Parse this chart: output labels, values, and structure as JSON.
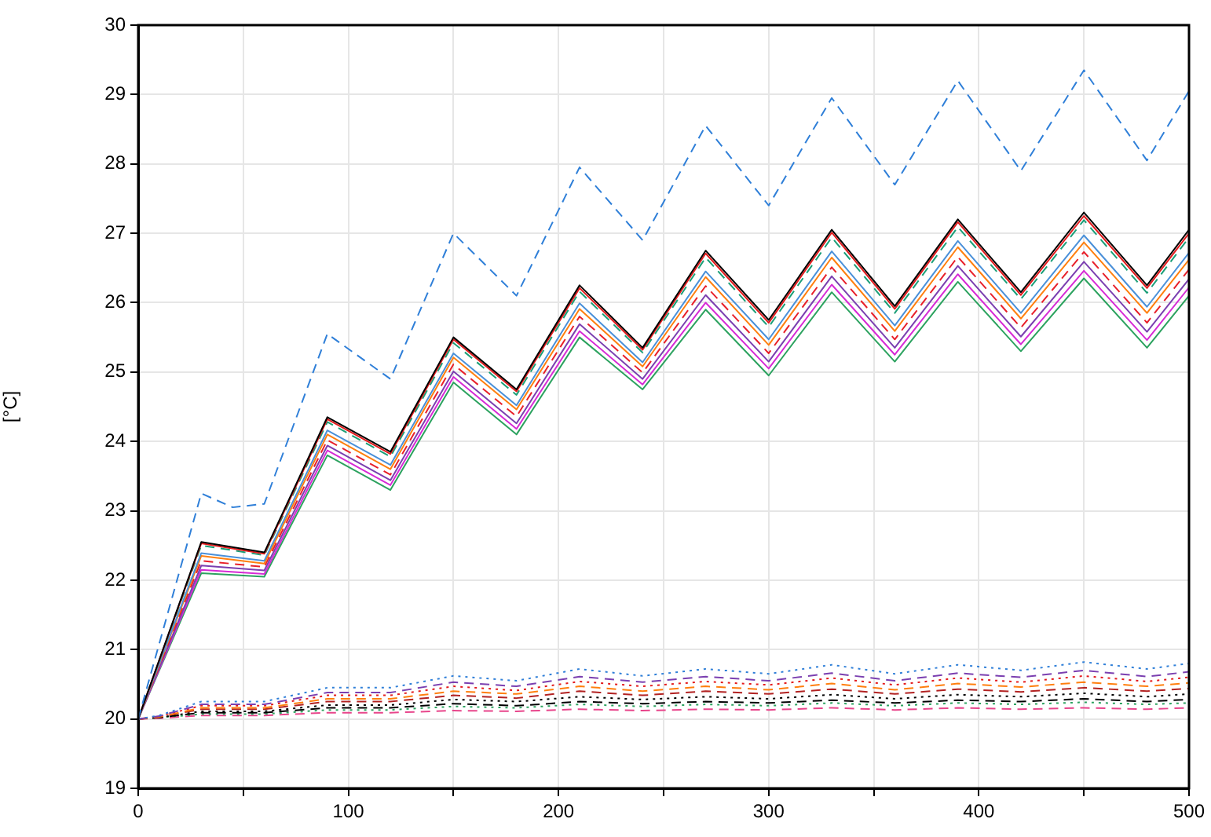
{
  "chart_data": {
    "type": "line",
    "ylabel": "[°C]",
    "xlim": [
      0,
      500
    ],
    "ylim": [
      19,
      30
    ],
    "xticks": [
      0,
      {
        "value": 50,
        "label": null
      },
      100,
      {
        "value": 150,
        "label": null
      },
      200,
      {
        "value": 250,
        "label": null
      },
      300,
      {
        "value": 350,
        "label": null
      },
      400,
      {
        "value": 450,
        "label": null
      },
      500
    ],
    "yticks": [
      19,
      20,
      21,
      22,
      23,
      24,
      25,
      26,
      27,
      28,
      29,
      30
    ],
    "grid": true,
    "legend": false,
    "series": [
      {
        "color": "#2f7fd8",
        "line_style": "dashed",
        "x": [
          0,
          30,
          45,
          60,
          90,
          120,
          150,
          180,
          210,
          240,
          270,
          300,
          330,
          360,
          390,
          420,
          450,
          480,
          500
        ],
        "values": [
          20,
          23.25,
          23.05,
          23.1,
          25.55,
          24.9,
          27.0,
          26.1,
          27.95,
          26.9,
          28.55,
          27.4,
          28.95,
          27.7,
          29.2,
          27.9,
          29.35,
          28.05,
          29.05
        ]
      },
      {
        "color": "#000000",
        "line_style": "solid",
        "x": [
          0,
          30,
          60,
          90,
          120,
          150,
          180,
          210,
          240,
          270,
          300,
          330,
          360,
          390,
          420,
          450,
          480,
          500
        ],
        "values": [
          20,
          22.55,
          22.4,
          24.35,
          23.85,
          25.5,
          24.75,
          26.25,
          25.35,
          26.75,
          25.75,
          27.05,
          25.95,
          27.2,
          26.15,
          27.3,
          26.25,
          27.05
        ]
      },
      {
        "color": "#e41a1c",
        "line_style": "solid",
        "x": [
          0,
          30,
          60,
          90,
          120,
          150,
          180,
          210,
          240,
          270,
          300,
          330,
          360,
          390,
          420,
          450,
          480,
          500
        ],
        "values": [
          20,
          22.53,
          22.38,
          24.32,
          23.82,
          25.47,
          24.72,
          26.21,
          25.32,
          26.71,
          25.71,
          27.01,
          25.91,
          27.16,
          26.11,
          27.25,
          26.21,
          27.0
        ]
      },
      {
        "color": "#1b9e77",
        "line_style": "dashed",
        "x": [
          0,
          30,
          60,
          90,
          120,
          150,
          180,
          210,
          240,
          270,
          300,
          330,
          360,
          390,
          420,
          450,
          480,
          500
        ],
        "values": [
          20,
          22.5,
          22.36,
          24.28,
          23.78,
          25.42,
          24.67,
          26.16,
          25.28,
          26.65,
          25.65,
          26.94,
          25.85,
          27.09,
          26.05,
          27.19,
          26.14,
          26.94
        ]
      },
      {
        "color": "#4a90d9",
        "line_style": "solid",
        "x": [
          0,
          30,
          60,
          90,
          120,
          150,
          180,
          210,
          240,
          270,
          300,
          330,
          360,
          390,
          420,
          450,
          480,
          500
        ],
        "values": [
          20,
          22.39,
          22.28,
          24.16,
          23.66,
          25.27,
          24.52,
          25.99,
          25.14,
          26.45,
          25.47,
          26.74,
          25.67,
          26.89,
          25.85,
          26.97,
          25.94,
          26.72
        ]
      },
      {
        "color": "#ff7f0e",
        "line_style": "solid",
        "x": [
          0,
          30,
          60,
          90,
          120,
          150,
          180,
          210,
          240,
          270,
          300,
          330,
          360,
          390,
          420,
          450,
          480,
          500
        ],
        "values": [
          20,
          22.35,
          22.24,
          24.1,
          23.6,
          25.21,
          24.46,
          25.91,
          25.08,
          26.37,
          25.39,
          26.65,
          25.59,
          26.8,
          25.77,
          26.87,
          25.85,
          26.62
        ]
      },
      {
        "color": "#e8202a",
        "line_style": "dashed",
        "x": [
          0,
          30,
          60,
          90,
          120,
          150,
          180,
          210,
          240,
          270,
          300,
          330,
          360,
          390,
          420,
          450,
          480,
          500
        ],
        "values": [
          20,
          22.28,
          22.19,
          24.02,
          23.52,
          25.11,
          24.36,
          25.8,
          24.99,
          26.24,
          25.27,
          26.51,
          25.47,
          26.66,
          25.64,
          26.73,
          25.71,
          26.48
        ]
      },
      {
        "color": "#7b3fb0",
        "line_style": "solid",
        "x": [
          0,
          30,
          60,
          90,
          120,
          150,
          180,
          210,
          240,
          270,
          300,
          330,
          360,
          390,
          420,
          450,
          480,
          500
        ],
        "values": [
          20,
          22.21,
          22.14,
          23.94,
          23.44,
          25.01,
          24.26,
          25.69,
          24.9,
          26.11,
          25.15,
          26.38,
          25.35,
          26.53,
          25.51,
          26.59,
          25.58,
          26.34
        ]
      },
      {
        "color": "#d62ad6",
        "line_style": "solid",
        "x": [
          0,
          30,
          60,
          90,
          120,
          150,
          180,
          210,
          240,
          270,
          300,
          330,
          360,
          390,
          420,
          450,
          480,
          500
        ],
        "values": [
          20,
          22.15,
          22.09,
          23.87,
          23.37,
          24.93,
          24.18,
          25.59,
          24.82,
          26.0,
          25.05,
          26.26,
          25.25,
          26.41,
          25.4,
          26.46,
          25.46,
          26.22
        ]
      },
      {
        "color": "#2ca25f",
        "line_style": "solid",
        "x": [
          0,
          30,
          60,
          90,
          120,
          150,
          180,
          210,
          240,
          270,
          300,
          330,
          360,
          390,
          420,
          450,
          480,
          500
        ],
        "values": [
          20,
          22.1,
          22.05,
          23.8,
          23.3,
          24.85,
          24.1,
          25.5,
          24.75,
          25.9,
          24.95,
          26.15,
          25.15,
          26.3,
          25.3,
          26.35,
          25.35,
          26.1
        ]
      },
      {
        "color": "#2f7fd8",
        "line_style": "dotted",
        "x": [
          0,
          10,
          30,
          60,
          90,
          120,
          150,
          180,
          210,
          240,
          270,
          300,
          330,
          360,
          390,
          420,
          450,
          480,
          500
        ],
        "values": [
          20,
          20.05,
          20.25,
          20.25,
          20.45,
          20.45,
          20.62,
          20.55,
          20.72,
          20.62,
          20.72,
          20.65,
          20.78,
          20.65,
          20.78,
          20.7,
          20.82,
          20.72,
          20.8
        ]
      },
      {
        "color": "#7b3fb0",
        "line_style": "dashed",
        "x": [
          0,
          10,
          30,
          60,
          90,
          120,
          150,
          180,
          210,
          240,
          270,
          300,
          330,
          360,
          390,
          420,
          450,
          480,
          500
        ],
        "values": [
          20,
          20.04,
          20.21,
          20.21,
          20.38,
          20.38,
          20.53,
          20.47,
          20.61,
          20.53,
          20.61,
          20.55,
          20.66,
          20.55,
          20.66,
          20.6,
          20.7,
          20.61,
          20.68
        ]
      },
      {
        "color": "#e41a1c",
        "line_style": "dotted",
        "x": [
          0,
          10,
          30,
          60,
          90,
          120,
          150,
          180,
          210,
          240,
          270,
          300,
          330,
          360,
          390,
          420,
          450,
          480,
          500
        ],
        "values": [
          20,
          20.04,
          20.19,
          20.19,
          20.34,
          20.34,
          20.47,
          20.41,
          20.54,
          20.47,
          20.54,
          20.49,
          20.59,
          20.49,
          20.59,
          20.53,
          20.62,
          20.54,
          20.6
        ]
      },
      {
        "color": "#ff7f0e",
        "line_style": "dashed",
        "x": [
          0,
          10,
          30,
          60,
          90,
          120,
          150,
          180,
          210,
          240,
          270,
          300,
          330,
          360,
          390,
          420,
          450,
          480,
          500
        ],
        "values": [
          20,
          20.03,
          20.16,
          20.16,
          20.29,
          20.29,
          20.4,
          20.36,
          20.47,
          20.4,
          20.47,
          20.42,
          20.51,
          20.42,
          20.51,
          20.46,
          20.53,
          20.47,
          20.52
        ]
      },
      {
        "color": "#b22222",
        "line_style": "dashed",
        "x": [
          0,
          10,
          30,
          60,
          90,
          120,
          150,
          180,
          210,
          240,
          270,
          300,
          330,
          360,
          390,
          420,
          450,
          480,
          500
        ],
        "values": [
          20,
          20.03,
          20.14,
          20.14,
          20.25,
          20.25,
          20.34,
          20.3,
          20.4,
          20.34,
          20.4,
          20.36,
          20.43,
          20.36,
          20.43,
          20.39,
          20.45,
          20.4,
          20.44
        ]
      },
      {
        "color": "#000000",
        "line_style": "dotted",
        "x": [
          0,
          10,
          30,
          60,
          90,
          120,
          150,
          180,
          210,
          240,
          270,
          300,
          330,
          360,
          390,
          420,
          450,
          480,
          500
        ],
        "values": [
          20,
          20.02,
          20.11,
          20.11,
          20.2,
          20.2,
          20.28,
          20.25,
          20.32,
          20.28,
          20.32,
          20.29,
          20.35,
          20.29,
          20.35,
          20.32,
          20.37,
          20.32,
          20.36
        ]
      },
      {
        "color": "#000000",
        "line_style": "dashed",
        "x": [
          0,
          10,
          30,
          60,
          90,
          120,
          150,
          180,
          210,
          240,
          270,
          300,
          330,
          360,
          390,
          420,
          450,
          480,
          500
        ],
        "values": [
          20,
          20.02,
          20.09,
          20.09,
          20.16,
          20.16,
          20.22,
          20.19,
          20.25,
          20.22,
          20.25,
          20.23,
          20.27,
          20.23,
          20.27,
          20.25,
          20.29,
          20.25,
          20.28
        ]
      },
      {
        "color": "#2ca25f",
        "line_style": "dotted",
        "x": [
          0,
          10,
          30,
          60,
          90,
          120,
          150,
          180,
          210,
          240,
          270,
          300,
          330,
          360,
          390,
          420,
          450,
          480,
          500
        ],
        "values": [
          20,
          20.02,
          20.07,
          20.07,
          20.13,
          20.13,
          20.18,
          20.16,
          20.21,
          20.18,
          20.21,
          20.19,
          20.23,
          20.19,
          20.23,
          20.21,
          20.24,
          20.21,
          20.23
        ]
      },
      {
        "color": "#e8458b",
        "line_style": "dashed",
        "x": [
          0,
          10,
          30,
          60,
          90,
          120,
          150,
          180,
          210,
          240,
          270,
          300,
          330,
          360,
          390,
          420,
          450,
          480,
          500
        ],
        "values": [
          20,
          20.01,
          20.05,
          20.05,
          20.09,
          20.09,
          20.12,
          20.11,
          20.14,
          20.12,
          20.14,
          20.13,
          20.16,
          20.13,
          20.16,
          20.14,
          20.16,
          20.14,
          20.16
        ]
      }
    ]
  }
}
